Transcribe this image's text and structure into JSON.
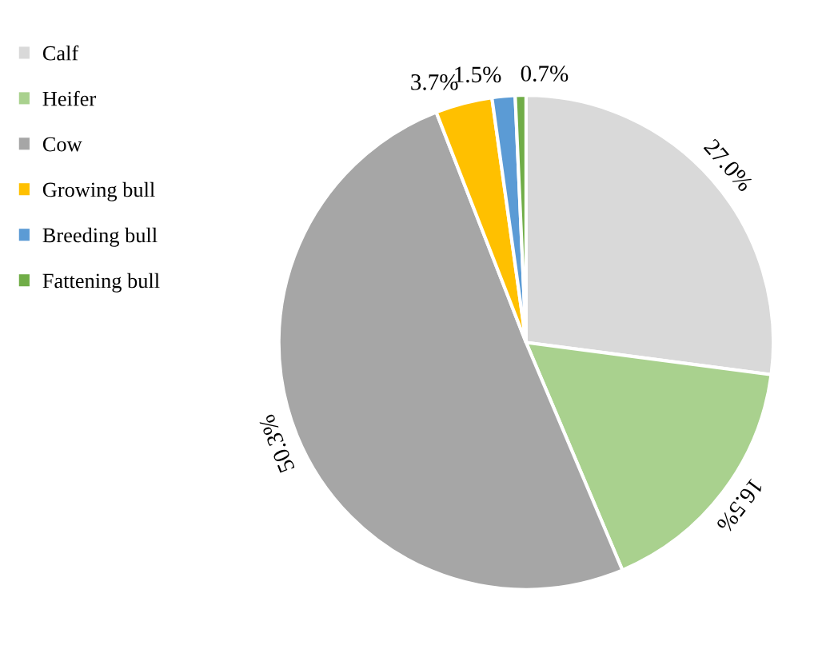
{
  "chart_data": {
    "type": "pie",
    "categories": [
      "Calf",
      "Heifer",
      "Cow",
      "Growing bull",
      "Breeding bull",
      "Fattening bull"
    ],
    "values": [
      27.0,
      16.5,
      50.3,
      3.7,
      1.5,
      0.7
    ],
    "colors": [
      "#d9d9d9",
      "#a9d18e",
      "#a6a6a6",
      "#ffc000",
      "#5b9bd5",
      "#70ad47"
    ],
    "value_labels": [
      "27.0%",
      "16.5%",
      "50.3%",
      "3.7%",
      "1.5%",
      "0.7%"
    ],
    "legend": "top left"
  }
}
